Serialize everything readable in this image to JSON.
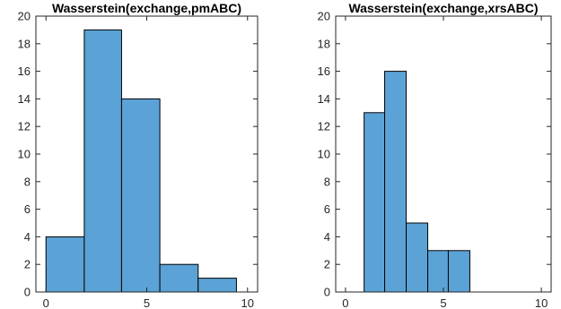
{
  "chart_data": [
    {
      "type": "bar",
      "subtype": "histogram",
      "title": "Wasserstein(exchange,pmABC)",
      "xlabel": "",
      "ylabel": "",
      "xlim": [
        -0.5,
        10.5
      ],
      "ylim": [
        0,
        20
      ],
      "xticks": [
        0,
        5,
        10
      ],
      "yticks": [
        0,
        2,
        4,
        6,
        8,
        10,
        12,
        14,
        16,
        18,
        20
      ],
      "bins": [
        {
          "x0": 0.0,
          "x1": 1.9,
          "count": 4
        },
        {
          "x0": 1.9,
          "x1": 3.75,
          "count": 19
        },
        {
          "x0": 3.75,
          "x1": 5.65,
          "count": 14
        },
        {
          "x0": 5.65,
          "x1": 7.55,
          "count": 2
        },
        {
          "x0": 7.55,
          "x1": 9.45,
          "count": 1
        }
      ],
      "bar_color": "#5ba3d6",
      "edge_color": "#000000",
      "grid": false
    },
    {
      "type": "bar",
      "subtype": "histogram",
      "title": "Wasserstein(exchange,xrsABC)",
      "xlabel": "",
      "ylabel": "",
      "xlim": [
        -0.5,
        10.5
      ],
      "ylim": [
        0,
        20
      ],
      "xticks": [
        0,
        5,
        10
      ],
      "yticks": [
        0,
        2,
        4,
        6,
        8,
        10,
        12,
        14,
        16,
        18,
        20
      ],
      "bins": [
        {
          "x0": 0.95,
          "x1": 2.0,
          "count": 13
        },
        {
          "x0": 2.0,
          "x1": 3.1,
          "count": 16
        },
        {
          "x0": 3.1,
          "x1": 4.2,
          "count": 5
        },
        {
          "x0": 4.2,
          "x1": 5.25,
          "count": 3
        },
        {
          "x0": 5.25,
          "x1": 6.35,
          "count": 3
        }
      ],
      "bar_color": "#5ba3d6",
      "edge_color": "#000000",
      "grid": false
    }
  ]
}
